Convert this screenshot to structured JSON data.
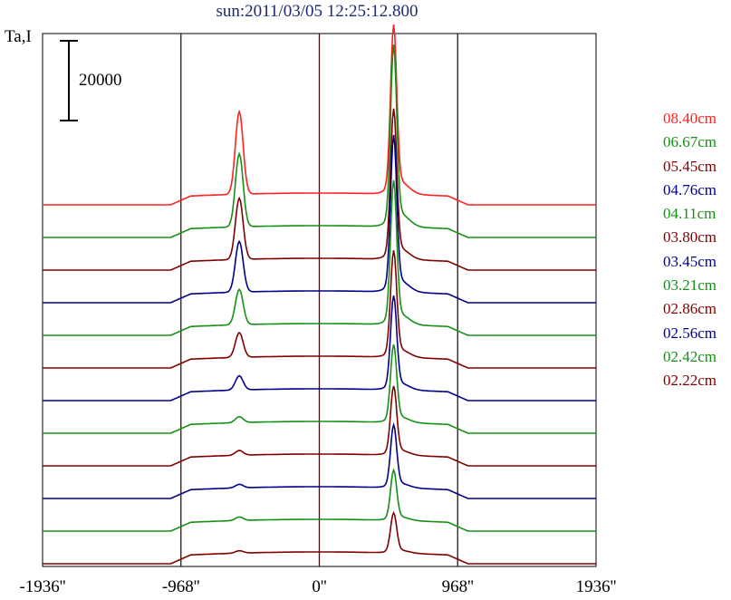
{
  "title": "sun:2011/03/05 12:25:12.800",
  "chart_data": {
    "type": "line",
    "title": "sun:2011/03/05 12:25:12.800",
    "ylabel": "Ta,I",
    "xlabel": "",
    "x_tick_labels": [
      "-1936''",
      "-968''",
      "0''",
      "968''",
      "1936''"
    ],
    "x_ticks": [
      -1936,
      -968,
      0,
      968,
      1936
    ],
    "xlim": [
      -1936,
      1936
    ],
    "vertical_lines": [
      -968,
      0,
      968
    ],
    "scale_bar_label": "20000",
    "scale_bar_value": 20000,
    "traces_stacked_with_offset": true,
    "grid": false,
    "legend_position": "right",
    "series": [
      {
        "name": "08.40cm",
        "color": "#ff2020",
        "baseline": 1.0,
        "left_peak": 0.7,
        "right_peak": 1.35
      },
      {
        "name": "06.67cm",
        "color": "#159015",
        "baseline": 1.0,
        "left_peak": 0.62,
        "right_peak": 1.45
      },
      {
        "name": "05.45cm",
        "color": "#800000",
        "baseline": 1.0,
        "left_peak": 0.52,
        "right_peak": 1.2
      },
      {
        "name": "04.76cm",
        "color": "#000088",
        "baseline": 1.0,
        "left_peak": 0.43,
        "right_peak": 1.25
      },
      {
        "name": "04.11cm",
        "color": "#159015",
        "baseline": 1.0,
        "left_peak": 0.3,
        "right_peak": 1.15
      },
      {
        "name": "03.80cm",
        "color": "#800000",
        "baseline": 1.0,
        "left_peak": 0.21,
        "right_peak": 0.85
      },
      {
        "name": "03.45cm",
        "color": "#000088",
        "baseline": 1.0,
        "left_peak": 0.12,
        "right_peak": 0.75
      },
      {
        "name": "03.21cm",
        "color": "#159015",
        "baseline": 1.0,
        "left_peak": 0.05,
        "right_peak": 0.62
      },
      {
        "name": "02.86cm",
        "color": "#800000",
        "baseline": 1.0,
        "left_peak": 0.04,
        "right_peak": 0.55
      },
      {
        "name": "02.56cm",
        "color": "#000088",
        "baseline": 1.0,
        "left_peak": 0.03,
        "right_peak": 0.5
      },
      {
        "name": "02.42cm",
        "color": "#159015",
        "baseline": 1.0,
        "left_peak": 0.03,
        "right_peak": 0.4
      },
      {
        "name": "02.22cm",
        "color": "#800000",
        "baseline": 1.0,
        "left_peak": 0.02,
        "right_peak": 0.32
      }
    ]
  }
}
